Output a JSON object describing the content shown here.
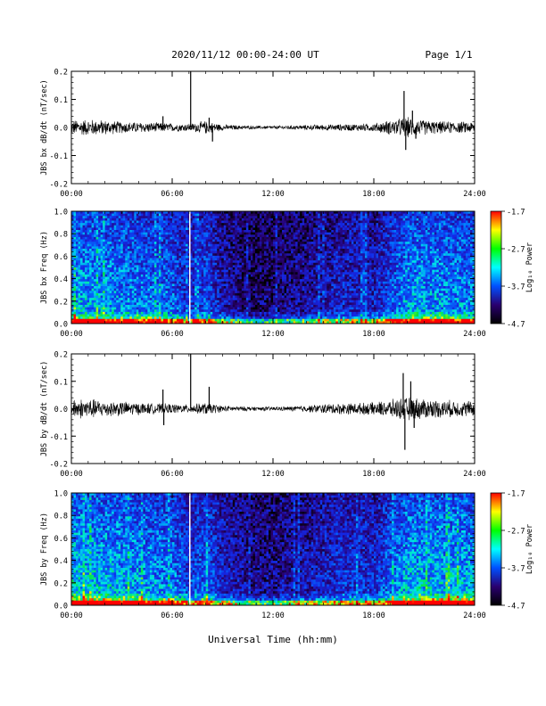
{
  "header": {
    "title": "2020/11/12  00:00-24:00 UT",
    "page_label": "Page 1/1"
  },
  "footer": {
    "xlabel": "Universal Time (hh:mm)"
  },
  "colorbar": {
    "label": "Log₁₀ Power",
    "ticks": [
      "-1.7",
      "-2.7",
      "-3.7",
      "-4.7"
    ],
    "colors": [
      "#ff0000",
      "#ffff00",
      "#00ff00",
      "#00ffff",
      "#0050ff",
      "#2a0070",
      "#000000"
    ]
  },
  "chart_data": [
    {
      "type": "line",
      "id": "bx-dbdt",
      "ylabel": "JBS bx dB/dt (nT/sec)",
      "xlim": [
        0,
        24
      ],
      "ylim": [
        -0.2,
        0.2
      ],
      "x_ticks": [
        "00:00",
        "06:00",
        "12:00",
        "18:00",
        "24:00"
      ],
      "y_ticks": [
        "0.2",
        "0.1",
        "0.0",
        "-0.1",
        "-0.2"
      ],
      "noise_envelope": [
        [
          0,
          0.018
        ],
        [
          1,
          0.02
        ],
        [
          2,
          0.018
        ],
        [
          3,
          0.014
        ],
        [
          4,
          0.013
        ],
        [
          5,
          0.012
        ],
        [
          6,
          0.01
        ],
        [
          7,
          0.009
        ],
        [
          8,
          0.016
        ],
        [
          9,
          0.007
        ],
        [
          10,
          0.005
        ],
        [
          11,
          0.004
        ],
        [
          12,
          0.004
        ],
        [
          13,
          0.005
        ],
        [
          14,
          0.006
        ],
        [
          15,
          0.007
        ],
        [
          16,
          0.008
        ],
        [
          17,
          0.009
        ],
        [
          18,
          0.01
        ],
        [
          19,
          0.018
        ],
        [
          20,
          0.025
        ],
        [
          21,
          0.018
        ],
        [
          22,
          0.015
        ],
        [
          23,
          0.014
        ],
        [
          24,
          0.014
        ]
      ],
      "spikes": [
        {
          "t": 7.1,
          "v": 0.2
        },
        {
          "t": 5.45,
          "v": 0.04
        },
        {
          "t": 8.2,
          "v": 0.035
        },
        {
          "t": 8.4,
          "v": -0.05
        },
        {
          "t": 19.8,
          "v": 0.13
        },
        {
          "t": 19.9,
          "v": -0.08
        },
        {
          "t": 20.3,
          "v": 0.06
        },
        {
          "t": 20.5,
          "v": -0.04
        }
      ]
    },
    {
      "type": "heatmap",
      "id": "bx-freq",
      "ylabel": "JBS bx Freq (Hz)",
      "xlim": [
        0,
        24
      ],
      "ylim": [
        0,
        1
      ],
      "zlim": [
        -4.7,
        -1.7
      ],
      "x_ticks": [
        "00:00",
        "06:00",
        "12:00",
        "18:00",
        "24:00"
      ],
      "y_ticks": [
        "1.0",
        "0.8",
        "0.6",
        "0.4",
        "0.2",
        "0.0"
      ],
      "colorbar_label": "Log₁₀ Power",
      "colorbar_ticks": [
        "-1.7",
        "-2.7",
        "-3.7",
        "-4.7"
      ],
      "white_line_at": 7.05
    },
    {
      "type": "line",
      "id": "by-dbdt",
      "ylabel": "JBS by dB/dt (nT/sec)",
      "xlim": [
        0,
        24
      ],
      "ylim": [
        -0.2,
        0.2
      ],
      "x_ticks": [
        "00:00",
        "06:00",
        "12:00",
        "18:00",
        "24:00"
      ],
      "y_ticks": [
        "0.2",
        "0.1",
        "0.0",
        "-0.1",
        "-0.2"
      ],
      "noise_envelope": [
        [
          0,
          0.025
        ],
        [
          1,
          0.025
        ],
        [
          2,
          0.02
        ],
        [
          3,
          0.018
        ],
        [
          4,
          0.015
        ],
        [
          5,
          0.013
        ],
        [
          6,
          0.012
        ],
        [
          7,
          0.01
        ],
        [
          8,
          0.015
        ],
        [
          9,
          0.008
        ],
        [
          10,
          0.006
        ],
        [
          11,
          0.005
        ],
        [
          12,
          0.005
        ],
        [
          13,
          0.006
        ],
        [
          14,
          0.008
        ],
        [
          15,
          0.012
        ],
        [
          16,
          0.014
        ],
        [
          17,
          0.014
        ],
        [
          18,
          0.016
        ],
        [
          19,
          0.022
        ],
        [
          20,
          0.03
        ],
        [
          21,
          0.025
        ],
        [
          22,
          0.022
        ],
        [
          23,
          0.02
        ],
        [
          24,
          0.02
        ]
      ],
      "spikes": [
        {
          "t": 7.1,
          "v": 0.2
        },
        {
          "t": 5.45,
          "v": 0.07
        },
        {
          "t": 5.5,
          "v": -0.06
        },
        {
          "t": 8.2,
          "v": 0.08
        },
        {
          "t": 19.75,
          "v": 0.13
        },
        {
          "t": 19.85,
          "v": -0.15
        },
        {
          "t": 20.2,
          "v": 0.1
        },
        {
          "t": 20.4,
          "v": -0.07
        }
      ]
    },
    {
      "type": "heatmap",
      "id": "by-freq",
      "ylabel": "JBS by Freq (Hz)",
      "xlim": [
        0,
        24
      ],
      "ylim": [
        0,
        1
      ],
      "zlim": [
        -4.7,
        -1.7
      ],
      "x_ticks": [
        "00:00",
        "06:00",
        "12:00",
        "18:00",
        "24:00"
      ],
      "y_ticks": [
        "1.0",
        "0.8",
        "0.6",
        "0.4",
        "0.2",
        "0.0"
      ],
      "colorbar_label": "Log₁₀ Power",
      "colorbar_ticks": [
        "-1.7",
        "-2.7",
        "-3.7",
        "-4.7"
      ],
      "white_line_at": 7.05
    }
  ]
}
